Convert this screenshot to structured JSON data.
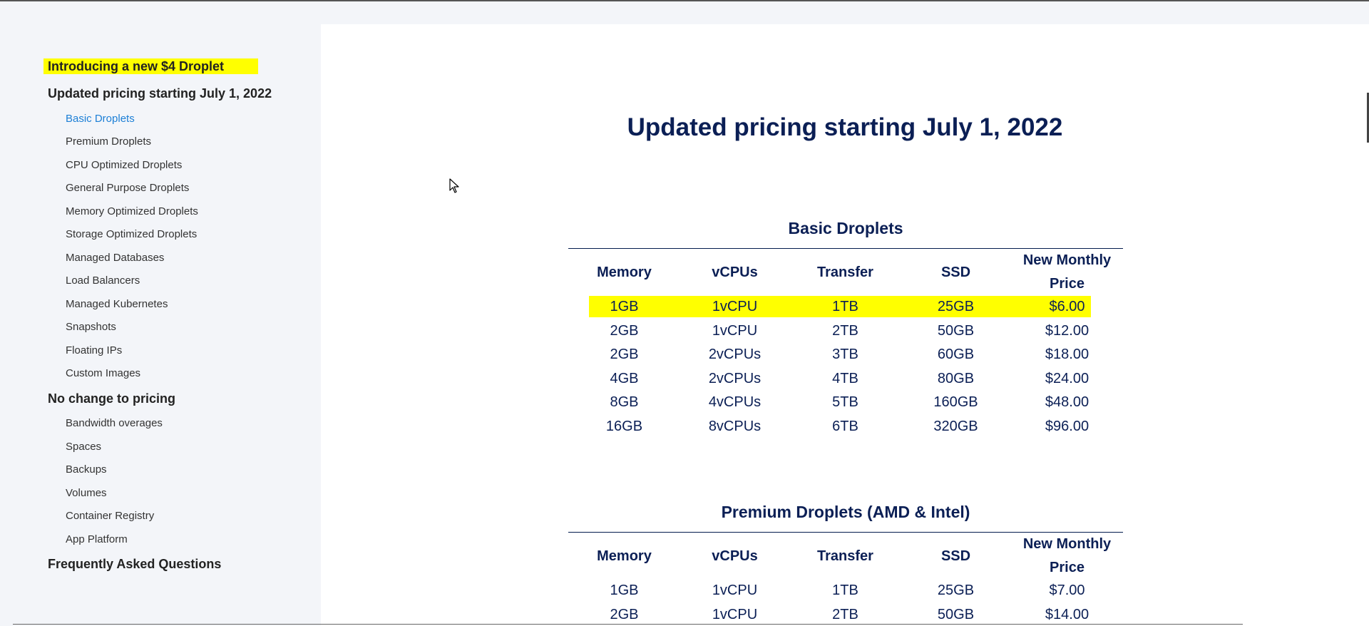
{
  "sidebar": {
    "highlight": "Introducing a new $4 Droplet",
    "section1": "Updated pricing starting July 1, 2022",
    "items1": [
      "Basic Droplets",
      "Premium Droplets",
      "CPU Optimized Droplets",
      "General Purpose Droplets",
      "Memory Optimized Droplets",
      "Storage Optimized Droplets",
      "Managed Databases",
      "Load Balancers",
      "Managed Kubernetes",
      "Snapshots",
      "Floating IPs",
      "Custom Images"
    ],
    "section2": "No change to pricing",
    "items2": [
      "Bandwidth overages",
      "Spaces",
      "Backups",
      "Volumes",
      "Container Registry",
      "App Platform"
    ],
    "section3": "Frequently Asked Questions"
  },
  "main": {
    "title": "Updated pricing starting July 1, 2022",
    "headers": [
      "Memory",
      "vCPUs",
      "Transfer",
      "SSD",
      "New Monthly Price"
    ],
    "tables": [
      {
        "title": "Basic Droplets",
        "rows": [
          [
            "1GB",
            "1vCPU",
            "1TB",
            "25GB",
            "$6.00"
          ],
          [
            "2GB",
            "1vCPU",
            "2TB",
            "50GB",
            "$12.00"
          ],
          [
            "2GB",
            "2vCPUs",
            "3TB",
            "60GB",
            "$18.00"
          ],
          [
            "4GB",
            "2vCPUs",
            "4TB",
            "80GB",
            "$24.00"
          ],
          [
            "8GB",
            "4vCPUs",
            "5TB",
            "160GB",
            "$48.00"
          ],
          [
            "16GB",
            "8vCPUs",
            "6TB",
            "320GB",
            "$96.00"
          ]
        ]
      },
      {
        "title": "Premium Droplets (AMD & Intel)",
        "rows": [
          [
            "1GB",
            "1vCPU",
            "1TB",
            "25GB",
            "$7.00"
          ],
          [
            "2GB",
            "1vCPU",
            "2TB",
            "50GB",
            "$14.00"
          ]
        ]
      }
    ]
  },
  "colors": {
    "highlight": "#ffff00",
    "heading": "#0b1f55",
    "link_active": "#1c7fd6"
  }
}
